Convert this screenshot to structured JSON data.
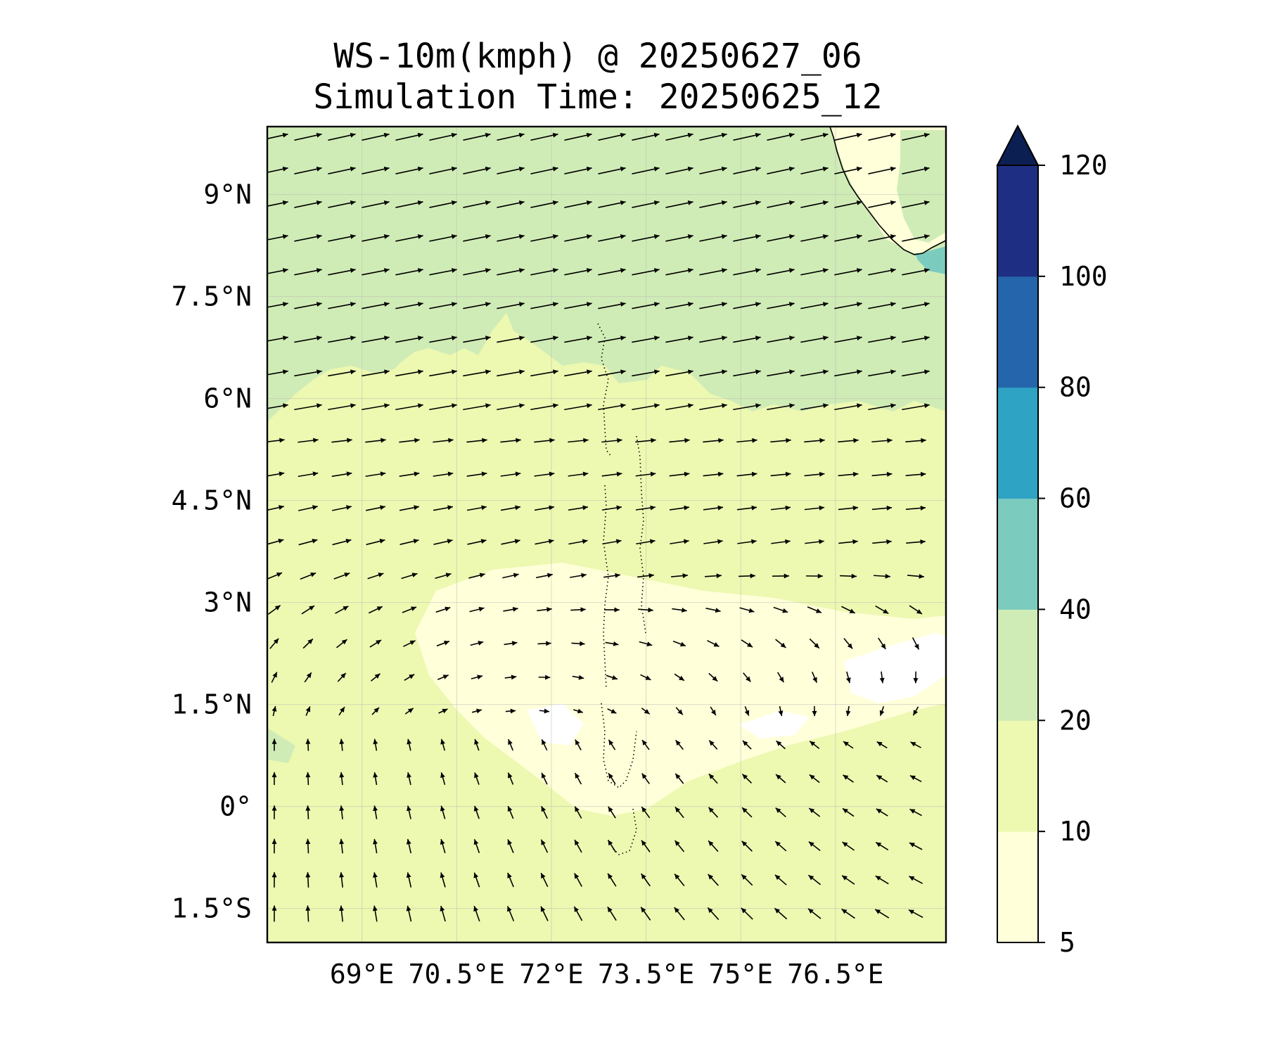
{
  "title": {
    "line1": "WS-10m(kmph) @ 20250627_06",
    "line2": "Simulation Time: 20250625_12"
  },
  "map": {
    "projection": "PlateCarree",
    "lon_range": [
      67.5,
      78.25
    ],
    "lat_range": [
      -2.0,
      10.0
    ],
    "x_ticks": [
      {
        "value": 69.0,
        "label": "69°E"
      },
      {
        "value": 70.5,
        "label": "70.5°E"
      },
      {
        "value": 72.0,
        "label": "72°E"
      },
      {
        "value": 73.5,
        "label": "73.5°E"
      },
      {
        "value": 75.0,
        "label": "75°E"
      },
      {
        "value": 76.5,
        "label": "76.5°E"
      }
    ],
    "y_ticks": [
      {
        "value": 9.0,
        "label": "9°N"
      },
      {
        "value": 7.5,
        "label": "7.5°N"
      },
      {
        "value": 6.0,
        "label": "6°N"
      },
      {
        "value": 4.5,
        "label": "4.5°N"
      },
      {
        "value": 3.0,
        "label": "3°N"
      },
      {
        "value": 1.5,
        "label": "1.5°N"
      },
      {
        "value": 0.0,
        "label": "0°"
      },
      {
        "value": -1.5,
        "label": "1.5°S"
      }
    ],
    "gridlines": true,
    "variable": "10 m wind speed (kmph) with wind vectors",
    "fields": {
      "strong_westerly_band": {
        "lat_min": 6.5,
        "speed_class": "20-40",
        "direction": "W to E"
      },
      "coastal_jet": {
        "lon_min": 77.5,
        "lat_min": 7.8,
        "speed_class": "40-60"
      },
      "calm_zone": {
        "lat": 1.5,
        "lon_min": 72.0,
        "speed_class": "5-10"
      },
      "southern_flow": {
        "lat_max": 1.0,
        "direction": "S to N in west, E to W in east",
        "speed_class": "10-20"
      }
    },
    "features": [
      "India southwest coastline",
      "Maldives atolls chain near 73.5°E"
    ]
  },
  "colorbar": {
    "levels": [
      5,
      10,
      20,
      40,
      60,
      80,
      100,
      120
    ],
    "tick_labels": [
      "5",
      "10",
      "20",
      "40",
      "60",
      "80",
      "100",
      "120"
    ],
    "colors": [
      "#ffffd9",
      "#edf8b1",
      "#d0ecb6",
      "#7ccbbf",
      "#2fa3c4",
      "#2565ab",
      "#1e2f83"
    ],
    "extend_color": "#0c1f52",
    "extend": "max"
  }
}
